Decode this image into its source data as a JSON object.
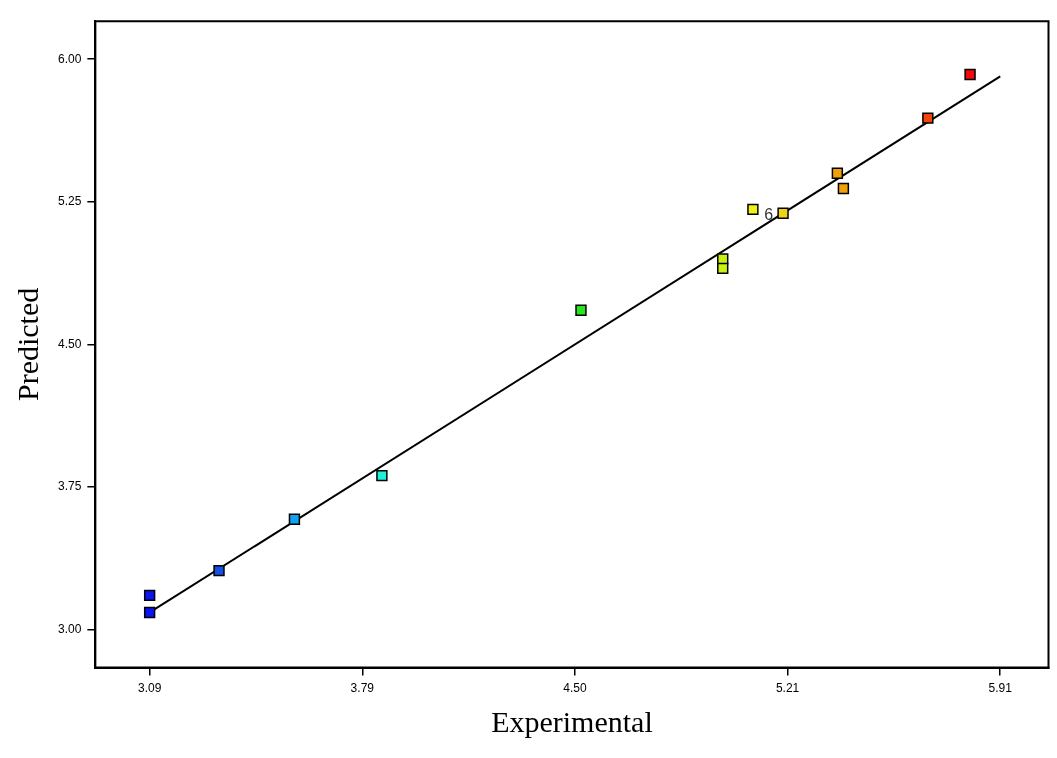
{
  "chart_data": {
    "type": "scatter",
    "xlabel": "Experimental",
    "ylabel": "Predicted",
    "xlim": [
      2.91,
      6.07
    ],
    "ylim": [
      2.8,
      6.2
    ],
    "xticks": [
      {
        "value": 3.09,
        "label": "3.09"
      },
      {
        "value": 3.795,
        "label": "3.79"
      },
      {
        "value": 4.5,
        "label": "4.50"
      },
      {
        "value": 5.205,
        "label": "5.21"
      },
      {
        "value": 5.91,
        "label": "5.91"
      }
    ],
    "yticks": [
      {
        "value": 3,
        "label": "3.00"
      },
      {
        "value": 3.75,
        "label": "3.75"
      },
      {
        "value": 4.5,
        "label": "4.50"
      },
      {
        "value": 5.25,
        "label": "5.25"
      },
      {
        "value": 6,
        "label": "6.00"
      }
    ],
    "grid": false,
    "legend": false,
    "marker": "square",
    "annotations": [
      {
        "text": "6",
        "x": 5.19,
        "y": 5.19
      }
    ],
    "series": [
      {
        "x": [
          3.09,
          3.09,
          3.32,
          3.57,
          3.86,
          4.52,
          4.99,
          4.99,
          5.09,
          5.19,
          5.37,
          5.39,
          5.67,
          5.81
        ],
        "values": [
          3.09,
          3.18,
          3.31,
          3.58,
          3.81,
          4.68,
          4.95,
          4.9,
          5.21,
          5.19,
          5.4,
          5.32,
          5.69,
          5.92
        ],
        "colors": [
          "#0a14f0",
          "#0a14f0",
          "#1450e6",
          "#14a0f0",
          "#1ef0dc",
          "#28e61e",
          "#c8f014",
          "#c8f014",
          "#f0f014",
          "#f0d214",
          "#f0a00a",
          "#f0a00a",
          "#f0460a",
          "#f00a0a"
        ]
      },
      {
        "type": "line",
        "x": [
          3.09,
          5.91
        ],
        "values": [
          3.09,
          5.91
        ],
        "color": "#000000",
        "marker": "none"
      }
    ]
  }
}
